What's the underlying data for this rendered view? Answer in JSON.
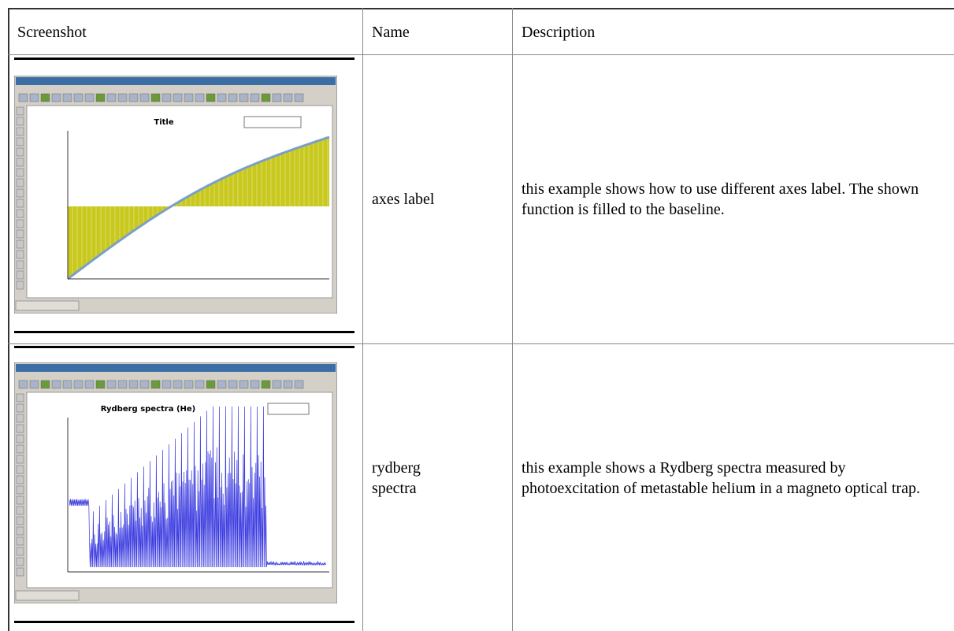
{
  "table": {
    "header": [
      "Screenshot",
      "Name",
      "Description"
    ],
    "rows": [
      {
        "thumbnail_title": "Title",
        "name": "axes label",
        "description": "this example shows how to use different axes label. The shown function is filled to the baseline."
      },
      {
        "thumbnail_title": "Rydberg spectra (He)",
        "name": "rydberg spectra",
        "description": "this example shows a Rydberg spectra measured by photoexcitation of metastable helium in a magneto optical trap."
      }
    ]
  }
}
